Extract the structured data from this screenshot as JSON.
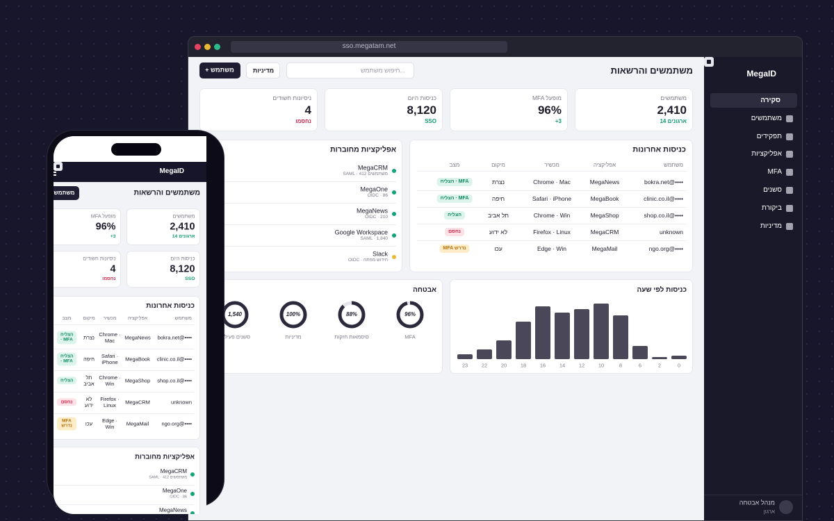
{
  "browser": {
    "url": "sso.megatam.net"
  },
  "sidebar": {
    "brand": "MegaID",
    "nav": [
      "סקירה",
      "משתמשים",
      "תפקידים",
      "אפליקציות",
      "MFA",
      "סשנים",
      "ביקורת",
      "מדיניות"
    ],
    "user": {
      "name": "מנהל אבטחה",
      "role": "ארגון"
    }
  },
  "header": {
    "title": "משתמשים והרשאות",
    "search_placeholder": "חיפוש משתמש...",
    "policy_button": "מדיניות",
    "add_button": "+ משתמש"
  },
  "stats": [
    {
      "label": "משתמשים",
      "value": "2,410",
      "note": "14 ארגונים"
    },
    {
      "label": "MFA מופעל",
      "value": "96%",
      "note": "+3"
    },
    {
      "label": "כניסות היום",
      "value": "8,120",
      "note": "SSO"
    },
    {
      "label": "ניסיונות חשודים",
      "value": "4",
      "note": "נחסמו"
    }
  ],
  "logins": {
    "title": "כניסות אחרונות",
    "columns": [
      "משתמש",
      "אפליקציה",
      "מכשיר",
      "מיקום",
      "מצב"
    ],
    "rows": [
      [
        "bokra.net@••••",
        "MegaNews",
        "Chrome · Mac",
        "נצרת",
        "הצליח · MFA"
      ],
      [
        "clinic.co.il@••••",
        "MegaBook",
        "Safari · iPhone",
        "חיפה",
        "הצליח · MFA"
      ],
      [
        "shop.co.il@••••",
        "MegaShop",
        "Chrome · Win",
        "תל אביב",
        "הצליח"
      ],
      [
        "unknown",
        "MegaCRM",
        "Firefox · Linux",
        "לא ידוע",
        "נחסם"
      ],
      [
        "ngo.org@••••",
        "MegaMail",
        "Edge · Win",
        "עכו",
        "MFA נדרש"
      ]
    ]
  },
  "apps": {
    "title": "אפליקציות מחוברות",
    "items": [
      {
        "name": "MegaCRM",
        "meta": "SAML · 412 משתמשים"
      },
      {
        "name": "MegaOne",
        "meta": "OIDC · 86"
      },
      {
        "name": "MegaNews",
        "meta": "OIDC · 210"
      },
      {
        "name": "Google Workspace",
        "meta": "SAML · 1,840"
      },
      {
        "name": "Slack",
        "meta": "OIDC · חידוש מפתח"
      }
    ]
  },
  "chart_data": [
    {
      "type": "bar",
      "title": "כניסות לפי שעה",
      "categories": [
        "0",
        "2",
        "6",
        "8",
        "10",
        "12",
        "14",
        "16",
        "18",
        "20",
        "22",
        "23"
      ],
      "values": [
        5,
        3,
        19,
        63,
        80,
        72,
        67,
        76,
        54,
        27,
        14,
        7
      ],
      "ylim": [
        0,
        80
      ],
      "color": "#4a4858"
    },
    {
      "type": "donut",
      "title": "אבטחה",
      "categories": [
        "MFA",
        "סיסמאות חזקות",
        "מדיניות",
        "סשנים פעילים"
      ],
      "values": [
        96,
        88,
        100,
        1540
      ],
      "value_labels": [
        "96%",
        "88%",
        "100%",
        "1,540"
      ],
      "ylim": [
        0,
        100
      ],
      "color": "#2b2a3c"
    }
  ]
}
